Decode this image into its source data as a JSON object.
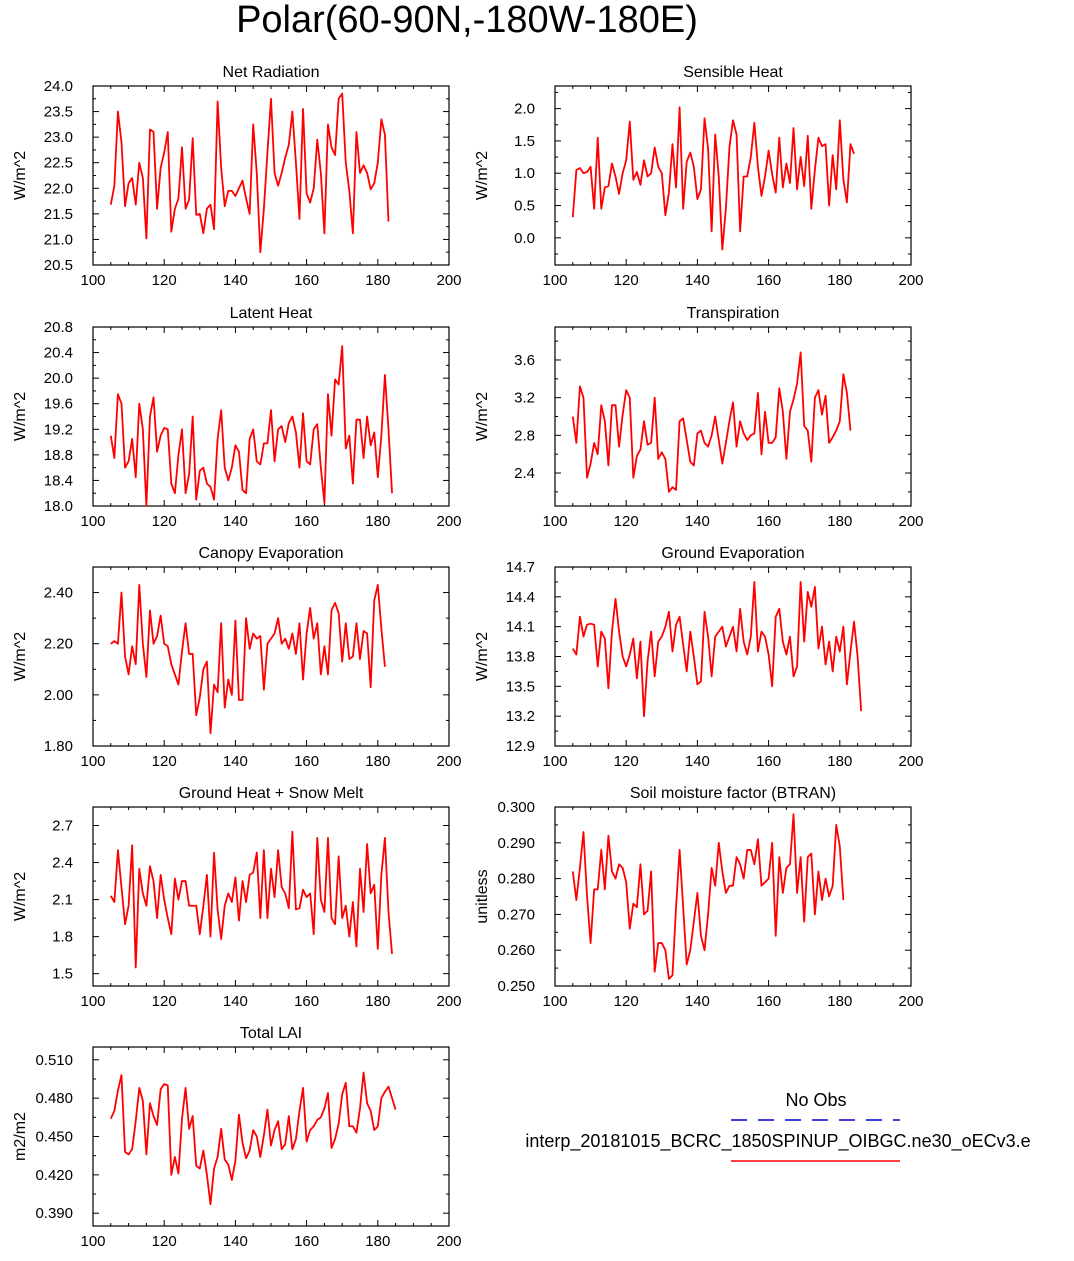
{
  "title": "Polar(60-90N,-180W-180E)",
  "colors": {
    "model_line": "#ff0000",
    "obs_line": "#0000cc",
    "axis": "#000000"
  },
  "legend": {
    "entries": [
      {
        "label": "No Obs",
        "style": "dashed",
        "color": "#0000cc"
      },
      {
        "label": "interp_20181015_BCRC_1850SPINUP_OIBGC.ne30_oECv3.e",
        "style": "solid",
        "color": "#ff0000"
      }
    ]
  },
  "chart_data": [
    {
      "type": "line",
      "title": "Net Radiation",
      "ylabel": "W/m^2",
      "xlim": [
        100,
        200
      ],
      "ylim": [
        20.5,
        24.0
      ],
      "xticks": [
        100,
        120,
        140,
        160,
        180,
        200
      ],
      "yticks": [
        "20.5",
        "21.0",
        "21.5",
        "22.0",
        "22.5",
        "23.0",
        "23.5",
        "24.0"
      ],
      "series": [
        {
          "x_start": 105,
          "values": [
            21.68,
            22.05,
            23.5,
            22.9,
            21.65,
            22.1,
            22.2,
            21.68,
            22.5,
            22.2,
            21.02,
            23.15,
            23.1,
            21.6,
            22.4,
            22.7,
            23.1,
            21.15,
            21.6,
            21.8,
            22.8,
            21.6,
            21.78,
            22.98,
            21.48,
            21.5,
            21.12,
            21.6,
            21.68,
            21.2,
            23.7,
            22.4,
            21.65,
            21.95,
            21.95,
            21.85,
            22.0,
            22.15,
            21.8,
            21.5,
            23.25,
            22.3,
            20.75,
            21.6,
            22.7,
            23.75,
            22.3,
            22.05,
            22.3,
            22.6,
            22.85,
            23.5,
            22.5,
            21.4,
            23.55,
            21.9,
            21.72,
            22.0,
            22.95,
            22.3,
            21.12,
            23.25,
            22.8,
            22.65,
            23.75,
            23.85,
            22.5,
            21.95,
            21.12,
            23.1,
            22.3,
            22.45,
            22.3,
            21.98,
            22.1,
            22.5,
            23.35,
            23.05,
            21.35
          ]
        }
      ]
    },
    {
      "type": "line",
      "title": "Sensible Heat",
      "ylabel": "W/m^2",
      "xlim": [
        100,
        200
      ],
      "ylim": [
        -0.42,
        2.35
      ],
      "xticks": [
        100,
        120,
        140,
        160,
        180,
        200
      ],
      "yticks": [
        "0.0",
        "0.5",
        "1.0",
        "1.5",
        "2.0"
      ],
      "series": [
        {
          "x_start": 105,
          "values": [
            0.32,
            1.05,
            1.08,
            1.0,
            1.02,
            1.1,
            0.45,
            1.55,
            0.45,
            0.78,
            0.8,
            1.15,
            0.95,
            0.68,
            1.0,
            1.2,
            1.8,
            0.9,
            1.02,
            0.82,
            1.2,
            0.95,
            1.0,
            1.4,
            1.1,
            1.0,
            0.35,
            0.7,
            1.45,
            0.78,
            2.02,
            0.45,
            1.18,
            1.32,
            1.1,
            0.6,
            0.75,
            1.85,
            1.38,
            0.1,
            1.6,
            0.95,
            -0.18,
            0.45,
            1.4,
            1.82,
            1.6,
            0.1,
            0.95,
            0.95,
            1.25,
            1.78,
            1.1,
            0.65,
            0.95,
            1.35,
            0.98,
            0.7,
            1.55,
            0.78,
            1.15,
            0.85,
            1.7,
            0.75,
            1.25,
            0.8,
            1.58,
            0.45,
            1.05,
            1.55,
            1.42,
            1.45,
            0.5,
            1.28,
            0.75,
            1.82,
            0.9,
            0.55,
            1.45,
            1.3
          ]
        }
      ]
    },
    {
      "type": "line",
      "title": "Latent Heat",
      "ylabel": "W/m^2",
      "xlim": [
        100,
        200
      ],
      "ylim": [
        18.0,
        20.8
      ],
      "xticks": [
        100,
        120,
        140,
        160,
        180,
        200
      ],
      "yticks": [
        "18.0",
        "18.4",
        "18.8",
        "19.2",
        "19.6",
        "20.0",
        "20.4",
        "20.8"
      ],
      "series": [
        {
          "x_start": 105,
          "values": [
            19.1,
            18.75,
            19.75,
            19.6,
            18.6,
            18.7,
            19.05,
            18.45,
            19.6,
            19.2,
            18.0,
            19.4,
            19.7,
            18.85,
            19.1,
            19.22,
            19.2,
            18.35,
            18.2,
            18.8,
            19.2,
            18.2,
            18.5,
            19.4,
            18.1,
            18.55,
            18.6,
            18.35,
            18.3,
            18.1,
            19.05,
            19.5,
            18.6,
            18.4,
            18.6,
            18.95,
            18.85,
            18.25,
            18.2,
            19.05,
            19.2,
            18.7,
            18.65,
            18.98,
            18.98,
            19.5,
            18.7,
            19.2,
            19.25,
            19.0,
            19.3,
            19.4,
            19.15,
            18.6,
            19.45,
            18.7,
            18.65,
            19.2,
            19.28,
            18.6,
            18.05,
            19.75,
            19.1,
            19.98,
            19.9,
            20.5,
            18.9,
            19.1,
            18.35,
            19.35,
            19.35,
            18.75,
            19.4,
            18.95,
            19.15,
            18.45,
            19.1,
            20.05,
            19.2,
            18.2
          ]
        }
      ]
    },
    {
      "type": "line",
      "title": "Transpiration",
      "ylabel": "W/m^2",
      "xlim": [
        100,
        200
      ],
      "ylim": [
        2.05,
        3.95
      ],
      "xticks": [
        100,
        120,
        140,
        160,
        180,
        200
      ],
      "yticks": [
        "2.4",
        "2.8",
        "3.2",
        "3.6"
      ],
      "series": [
        {
          "x_start": 105,
          "values": [
            3.0,
            2.72,
            3.32,
            3.2,
            2.35,
            2.5,
            2.72,
            2.6,
            3.12,
            2.95,
            2.48,
            3.12,
            3.12,
            2.68,
            3.02,
            3.28,
            3.2,
            2.35,
            2.58,
            2.65,
            2.95,
            2.7,
            2.72,
            3.2,
            2.55,
            2.62,
            2.55,
            2.2,
            2.25,
            2.22,
            2.95,
            2.98,
            2.75,
            2.52,
            2.48,
            2.82,
            2.85,
            2.72,
            2.68,
            2.8,
            3.0,
            2.75,
            2.5,
            2.72,
            2.95,
            3.15,
            2.68,
            2.95,
            2.82,
            2.75,
            2.8,
            2.82,
            3.25,
            2.6,
            3.05,
            2.72,
            2.72,
            2.78,
            3.3,
            3.05,
            2.55,
            3.05,
            3.18,
            3.35,
            3.68,
            2.9,
            2.85,
            2.52,
            3.2,
            3.28,
            3.02,
            3.22,
            2.72,
            2.78,
            2.85,
            2.95,
            3.45,
            3.25,
            2.85
          ]
        }
      ]
    },
    {
      "type": "line",
      "title": "Canopy Evaporation",
      "ylabel": "W/m^2",
      "xlim": [
        100,
        200
      ],
      "ylim": [
        1.8,
        2.5
      ],
      "xticks": [
        100,
        120,
        140,
        160,
        180,
        200
      ],
      "yticks": [
        "1.80",
        "2.00",
        "2.20",
        "2.40"
      ],
      "series": [
        {
          "x_start": 105,
          "values": [
            2.2,
            2.21,
            2.2,
            2.4,
            2.15,
            2.08,
            2.19,
            2.12,
            2.43,
            2.2,
            2.07,
            2.33,
            2.2,
            2.23,
            2.31,
            2.2,
            2.19,
            2.12,
            2.08,
            2.04,
            2.17,
            2.28,
            2.16,
            2.16,
            1.92,
            1.99,
            2.1,
            2.13,
            1.85,
            2.04,
            2.01,
            2.28,
            1.95,
            2.06,
            2.0,
            2.29,
            1.98,
            1.98,
            2.3,
            2.18,
            2.24,
            2.22,
            2.23,
            2.02,
            2.2,
            2.22,
            2.24,
            2.3,
            2.2,
            2.22,
            2.18,
            2.24,
            2.16,
            2.28,
            2.06,
            2.24,
            2.34,
            2.22,
            2.28,
            2.08,
            2.19,
            2.08,
            2.33,
            2.36,
            2.32,
            2.13,
            2.28,
            2.14,
            2.15,
            2.28,
            2.14,
            2.25,
            2.24,
            2.03,
            2.37,
            2.43,
            2.26,
            2.11
          ]
        }
      ]
    },
    {
      "type": "line",
      "title": "Ground Evaporation",
      "ylabel": "W/m^2",
      "xlim": [
        100,
        200
      ],
      "ylim": [
        12.9,
        14.7
      ],
      "xticks": [
        100,
        120,
        140,
        160,
        180,
        200
      ],
      "yticks": [
        "12.9",
        "13.2",
        "13.5",
        "13.8",
        "14.1",
        "14.4",
        "14.7"
      ],
      "series": [
        {
          "x_start": 105,
          "values": [
            13.88,
            13.82,
            14.2,
            14.0,
            14.12,
            14.13,
            14.12,
            13.7,
            14.05,
            13.98,
            13.48,
            14.05,
            14.38,
            14.05,
            13.8,
            13.7,
            13.82,
            13.98,
            13.58,
            13.95,
            13.2,
            13.75,
            14.05,
            13.6,
            13.95,
            14.0,
            14.1,
            14.25,
            13.85,
            14.12,
            14.2,
            13.92,
            13.65,
            14.05,
            13.8,
            13.52,
            13.55,
            14.25,
            14.0,
            13.6,
            14.0,
            14.05,
            14.1,
            13.9,
            14.0,
            14.1,
            13.85,
            14.28,
            13.95,
            13.82,
            14.0,
            14.55,
            13.85,
            14.05,
            14.0,
            13.82,
            13.5,
            14.2,
            14.28,
            13.95,
            13.82,
            14.0,
            13.6,
            13.7,
            14.55,
            13.95,
            14.45,
            14.3,
            14.5,
            13.88,
            14.1,
            13.72,
            13.95,
            13.65,
            14.0,
            13.85,
            14.1,
            13.52,
            13.85,
            14.15,
            13.8,
            13.25
          ]
        }
      ]
    },
    {
      "type": "line",
      "title": "Ground Heat + Snow Melt",
      "ylabel": "W/m^2",
      "xlim": [
        100,
        200
      ],
      "ylim": [
        1.4,
        2.85
      ],
      "xticks": [
        100,
        120,
        140,
        160,
        180,
        200
      ],
      "yticks": [
        "1.5",
        "1.8",
        "2.1",
        "2.4",
        "2.7"
      ],
      "series": [
        {
          "x_start": 105,
          "values": [
            2.13,
            2.08,
            2.5,
            2.2,
            1.9,
            2.05,
            2.54,
            1.55,
            2.35,
            2.15,
            2.05,
            2.37,
            2.25,
            1.95,
            2.3,
            2.1,
            1.95,
            1.82,
            2.27,
            2.1,
            2.25,
            2.25,
            2.05,
            2.05,
            2.05,
            1.82,
            2.05,
            2.3,
            1.8,
            2.48,
            2.02,
            1.78,
            2.05,
            2.15,
            2.08,
            2.28,
            1.93,
            2.25,
            2.08,
            2.3,
            2.32,
            2.48,
            1.95,
            2.5,
            1.95,
            2.35,
            2.12,
            2.5,
            2.2,
            2.15,
            2.03,
            2.65,
            2.02,
            2.03,
            2.18,
            2.12,
            2.15,
            1.82,
            2.6,
            2.1,
            2.0,
            2.6,
            1.95,
            1.9,
            2.45,
            1.95,
            2.05,
            1.8,
            2.08,
            1.72,
            2.35,
            2.0,
            2.55,
            2.15,
            2.22,
            1.7,
            2.3,
            2.6,
            2.0,
            1.66
          ]
        }
      ]
    },
    {
      "type": "line",
      "title": "Soil moisture factor (BTRAN)",
      "ylabel": "unitless",
      "xlim": [
        100,
        200
      ],
      "ylim": [
        0.25,
        0.3
      ],
      "xticks": [
        100,
        120,
        140,
        160,
        180,
        200
      ],
      "yticks": [
        "0.250",
        "0.260",
        "0.270",
        "0.280",
        "0.290",
        "0.300"
      ],
      "series": [
        {
          "x_start": 105,
          "values": [
            0.282,
            0.274,
            0.283,
            0.293,
            0.275,
            0.262,
            0.277,
            0.277,
            0.288,
            0.277,
            0.292,
            0.282,
            0.28,
            0.284,
            0.283,
            0.279,
            0.266,
            0.273,
            0.272,
            0.284,
            0.27,
            0.271,
            0.282,
            0.254,
            0.262,
            0.262,
            0.26,
            0.252,
            0.253,
            0.272,
            0.288,
            0.272,
            0.256,
            0.26,
            0.268,
            0.276,
            0.264,
            0.26,
            0.27,
            0.283,
            0.278,
            0.29,
            0.282,
            0.276,
            0.278,
            0.278,
            0.286,
            0.284,
            0.28,
            0.288,
            0.288,
            0.284,
            0.291,
            0.278,
            0.279,
            0.28,
            0.29,
            0.264,
            0.286,
            0.276,
            0.283,
            0.284,
            0.298,
            0.276,
            0.286,
            0.268,
            0.286,
            0.287,
            0.27,
            0.282,
            0.274,
            0.28,
            0.275,
            0.278,
            0.295,
            0.289,
            0.274
          ]
        }
      ]
    },
    {
      "type": "line",
      "title": "Total LAI",
      "ylabel": "m2/m2",
      "xlim": [
        100,
        200
      ],
      "ylim": [
        0.38,
        0.52
      ],
      "xticks": [
        100,
        120,
        140,
        160,
        180,
        200
      ],
      "yticks": [
        "0.390",
        "0.420",
        "0.450",
        "0.480",
        "0.510"
      ],
      "series": [
        {
          "x_start": 105,
          "values": [
            0.464,
            0.47,
            0.486,
            0.498,
            0.438,
            0.436,
            0.44,
            0.462,
            0.488,
            0.478,
            0.436,
            0.476,
            0.466,
            0.459,
            0.487,
            0.491,
            0.49,
            0.42,
            0.434,
            0.421,
            0.464,
            0.488,
            0.456,
            0.466,
            0.427,
            0.425,
            0.439,
            0.42,
            0.397,
            0.425,
            0.434,
            0.456,
            0.432,
            0.428,
            0.416,
            0.431,
            0.467,
            0.445,
            0.433,
            0.439,
            0.455,
            0.45,
            0.434,
            0.451,
            0.471,
            0.443,
            0.455,
            0.462,
            0.44,
            0.444,
            0.466,
            0.44,
            0.448,
            0.47,
            0.488,
            0.446,
            0.455,
            0.458,
            0.463,
            0.465,
            0.472,
            0.484,
            0.441,
            0.448,
            0.46,
            0.483,
            0.492,
            0.458,
            0.458,
            0.453,
            0.472,
            0.5,
            0.476,
            0.47,
            0.455,
            0.458,
            0.48,
            0.485,
            0.489,
            0.48,
            0.471
          ]
        }
      ]
    }
  ]
}
